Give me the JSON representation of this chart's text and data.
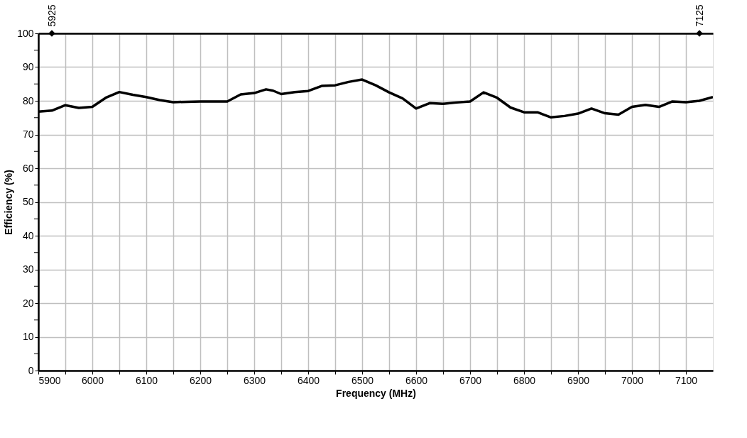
{
  "chart_data": {
    "type": "line",
    "xlabel": "Frequency (MHz)",
    "ylabel": "Efficiency (%)",
    "xlim": [
      5900,
      7150
    ],
    "ylim": [
      0,
      100
    ],
    "xticks": [
      5900,
      {
        "value": 5950,
        "label": null
      },
      6000,
      {
        "value": 6050,
        "label": null
      },
      6100,
      {
        "value": 6150,
        "label": null
      },
      6200,
      {
        "value": 6250,
        "label": null
      },
      6300,
      {
        "value": 6350,
        "label": null
      },
      6400,
      {
        "value": 6450,
        "label": null
      },
      6500,
      {
        "value": 6550,
        "label": null
      },
      6600,
      {
        "value": 6650,
        "label": null
      },
      6700,
      {
        "value": 6750,
        "label": null
      },
      6800,
      {
        "value": 6850,
        "label": null
      },
      6900,
      {
        "value": 6950,
        "label": null
      },
      7000,
      {
        "value": 7050,
        "label": null
      },
      7100
    ],
    "yticks": [
      0,
      {
        "value": 5,
        "label": null
      },
      10,
      {
        "value": 15,
        "label": null
      },
      20,
      {
        "value": 25,
        "label": null
      },
      30,
      {
        "value": 35,
        "label": null
      },
      40,
      {
        "value": 45,
        "label": null
      },
      50,
      {
        "value": 55,
        "label": null
      },
      60,
      {
        "value": 65,
        "label": null
      },
      70,
      {
        "value": 75,
        "label": null
      },
      80,
      {
        "value": 85,
        "label": null
      },
      90,
      {
        "value": 95,
        "label": null
      },
      100
    ],
    "x2lim": [
      5900,
      7150
    ],
    "x2ticks": [
      5925,
      7125
    ],
    "grid": true,
    "series": [
      {
        "color": "#000000",
        "marker": "none",
        "x": [
          5900,
          5925,
          5950,
          5975,
          6000,
          6025,
          6050,
          6075,
          6100,
          6125,
          6150,
          6200,
          6250,
          6275,
          6300,
          6322,
          6335,
          6350,
          6375,
          6400,
          6425,
          6450,
          6475,
          6500,
          6525,
          6550,
          6575,
          6600,
          6625,
          6650,
          6675,
          6700,
          6725,
          6750,
          6775,
          6800,
          6825,
          6850,
          6875,
          6900,
          6925,
          6950,
          6975,
          7000,
          7025,
          7050,
          7075,
          7100,
          7125,
          7150
        ],
        "values": [
          76.8,
          77.1,
          78.7,
          77.9,
          78.2,
          80.9,
          82.6,
          81.8,
          81.1,
          80.2,
          79.6,
          79.8,
          79.8,
          81.9,
          82.3,
          83.4,
          83.0,
          82.0,
          82.6,
          82.9,
          84.4,
          84.6,
          85.6,
          86.3,
          84.6,
          82.5,
          80.7,
          77.7,
          79.3,
          79.1,
          79.5,
          79.8,
          82.5,
          80.9,
          78.0,
          76.6,
          76.6,
          75.1,
          75.5,
          76.2,
          77.7,
          76.3,
          75.9,
          78.2,
          78.8,
          78.2,
          79.8,
          79.6,
          80.0,
          81.1
        ]
      },
      {
        "type": "scatter",
        "axis": "x2",
        "color": "#000000",
        "marker": "diamond",
        "x": [
          5925,
          7125
        ],
        "values": [
          100,
          100
        ]
      }
    ]
  }
}
